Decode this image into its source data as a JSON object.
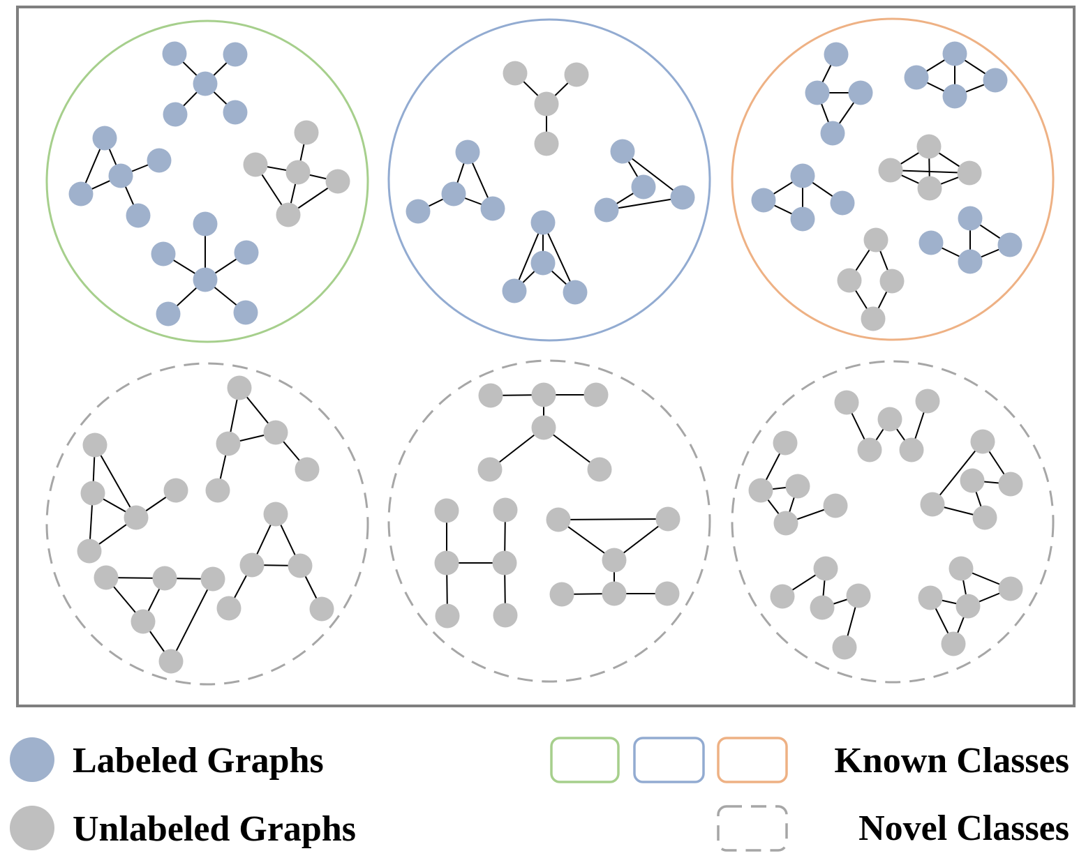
{
  "colors": {
    "labeled": "#9fb1cc",
    "unlabeled": "#bfbfbf",
    "frame": "#7f7f7f",
    "known_class_1": "#a6cf8c",
    "known_class_2": "#92abd1",
    "known_class_3": "#eeb184",
    "novel_class": "#a6a6a6"
  },
  "legend": {
    "labeled_label": "Labeled Graphs",
    "unlabeled_label": "Unlabeled Graphs",
    "known_label": "Known Classes",
    "novel_label": "Novel Classes"
  }
}
